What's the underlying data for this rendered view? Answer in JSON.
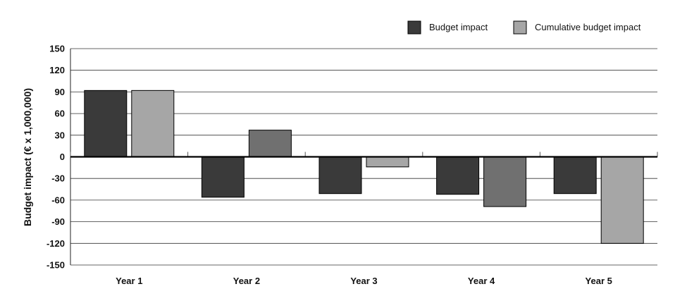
{
  "chart_data": {
    "type": "bar",
    "title": "",
    "xlabel": "",
    "ylabel": "Budget impact (€ x 1,000,000)",
    "categories": [
      "Year 1",
      "Year 2",
      "Year 3",
      "Year 4",
      "Year 5"
    ],
    "ylim": [
      -150,
      150
    ],
    "yticks": [
      150,
      120,
      90,
      60,
      30,
      0,
      -30,
      -60,
      -90,
      -120,
      -150
    ],
    "grid": true,
    "legend_position": "top-right",
    "series": [
      {
        "name": "Budget impact",
        "color": "#3a3a3a",
        "values": [
          92,
          -56,
          -51,
          -52,
          -51
        ]
      },
      {
        "name": "Cumulative budget impact",
        "color": "#a6a6a6",
        "point_colors": [
          "#a6a6a6",
          "#707070",
          "#a6a6a6",
          "#707070",
          "#a6a6a6"
        ],
        "values": [
          92,
          37,
          -14,
          -69,
          -120
        ]
      }
    ]
  }
}
